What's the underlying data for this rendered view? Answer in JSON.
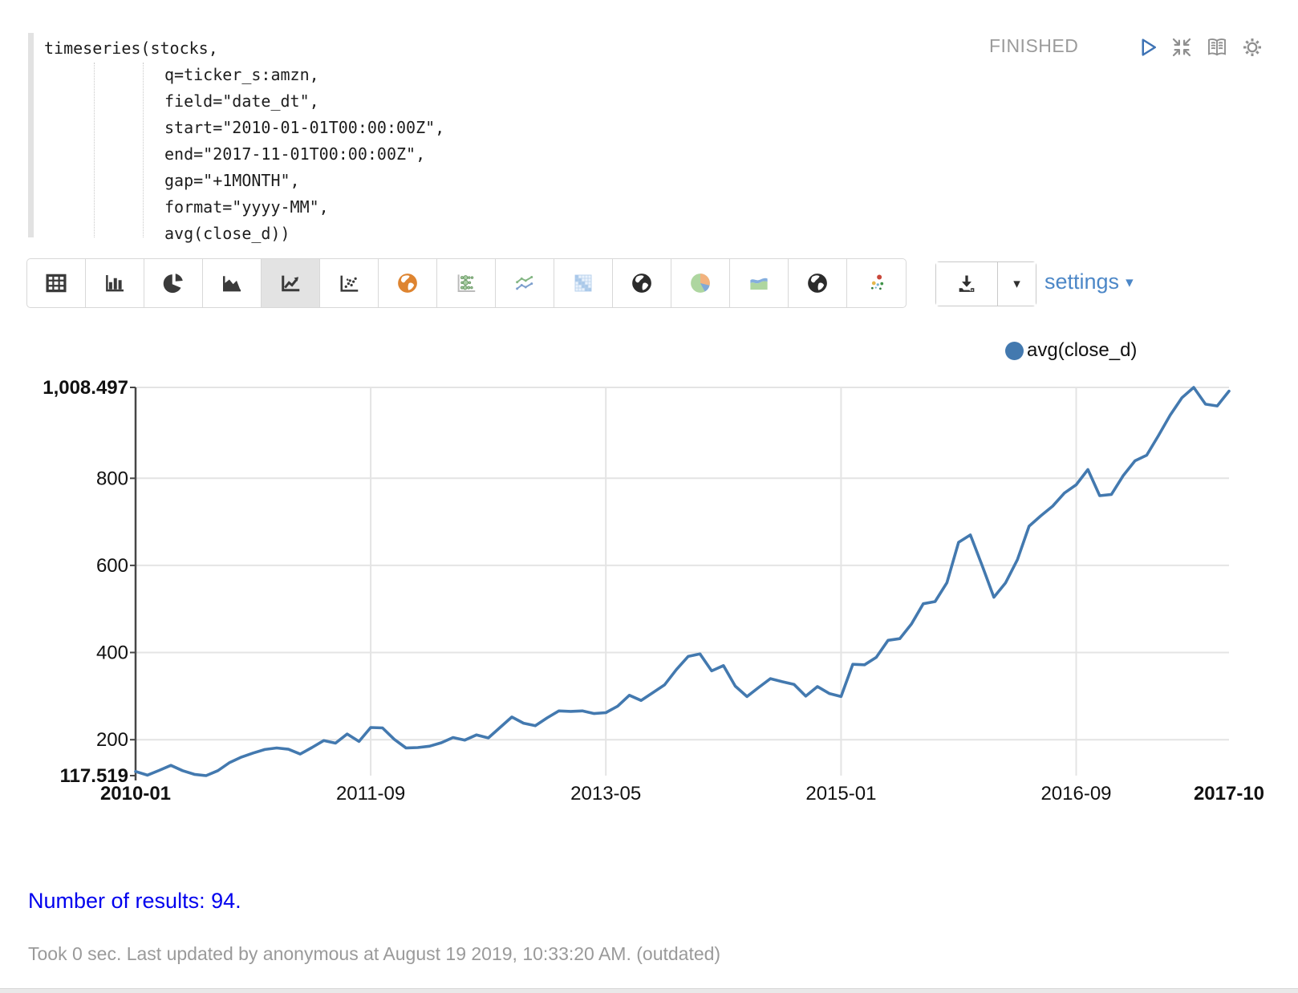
{
  "paragraph": {
    "status": "FINISHED",
    "editor": {
      "lines": [
        "timeseries(stocks,",
        "q=ticker_s:amzn,",
        "field=\"date_dt\",",
        "start=\"2010-01-01T00:00:00Z\",",
        "end=\"2017-11-01T00:00:00Z\",",
        "gap=\"+1MONTH\",",
        "format=\"yyyy-MM\",",
        "avg(close_d))"
      ]
    },
    "toolbar": {
      "buttons": [
        {
          "name": "table",
          "icon": "table-icon",
          "selected": false
        },
        {
          "name": "bar-chart",
          "icon": "bar-chart-icon",
          "selected": false
        },
        {
          "name": "pie-chart",
          "icon": "pie-chart-icon",
          "selected": false
        },
        {
          "name": "area-chart",
          "icon": "area-chart-icon",
          "selected": false
        },
        {
          "name": "line-chart",
          "icon": "line-chart-icon",
          "selected": true
        },
        {
          "name": "scatter-plot",
          "icon": "scatter-plot-icon",
          "selected": false
        },
        {
          "name": "map-orange",
          "icon": "globe-orange-icon",
          "selected": false
        },
        {
          "name": "bubble-matrix",
          "icon": "bubble-matrix-icon",
          "selected": false
        },
        {
          "name": "multi-line",
          "icon": "line-dots-icon",
          "selected": false
        },
        {
          "name": "heatmap",
          "icon": "heatmap-icon",
          "selected": false
        },
        {
          "name": "map-dark",
          "icon": "globe-dark-icon",
          "selected": false
        },
        {
          "name": "pie-color",
          "icon": "pie-color-icon",
          "selected": false
        },
        {
          "name": "area-color",
          "icon": "area-color-icon",
          "selected": false
        },
        {
          "name": "map-dark-2",
          "icon": "globe-dark2-icon",
          "selected": false
        },
        {
          "name": "scatter-color",
          "icon": "scatter-color-icon",
          "selected": false
        }
      ],
      "settings_label": "settings",
      "download_caret": "▾",
      "settings_caret": "▾"
    },
    "legend": {
      "label": "avg(close_d)",
      "color": "#4379af"
    },
    "results_text": "Number of results: 94.",
    "footer_text": "Took 0 sec. Last updated by anonymous at August 19 2019, 10:33:20 AM. (outdated)"
  },
  "chart_data": {
    "type": "line",
    "title": "",
    "xlabel": "",
    "ylabel": "",
    "grid": true,
    "legend_position": "top-right",
    "line_color": "#4379af",
    "ylim": [
      117.519,
      1008.497
    ],
    "y_ticks": [
      200,
      400,
      600,
      800
    ],
    "y_max_label": "1,008.497",
    "y_min_label": "117.519",
    "x_ticks": [
      {
        "index": 0,
        "label": "2010-01",
        "bold": true
      },
      {
        "index": 20,
        "label": "2011-09",
        "bold": false
      },
      {
        "index": 40,
        "label": "2013-05",
        "bold": false
      },
      {
        "index": 60,
        "label": "2015-01",
        "bold": false
      },
      {
        "index": 80,
        "label": "2016-09",
        "bold": false
      },
      {
        "index": 93,
        "label": "2017-10",
        "bold": true
      }
    ],
    "x": [
      "2010-01",
      "2010-02",
      "2010-03",
      "2010-04",
      "2010-05",
      "2010-06",
      "2010-07",
      "2010-08",
      "2010-09",
      "2010-10",
      "2010-11",
      "2010-12",
      "2011-01",
      "2011-02",
      "2011-03",
      "2011-04",
      "2011-05",
      "2011-06",
      "2011-07",
      "2011-08",
      "2011-09",
      "2011-10",
      "2011-11",
      "2011-12",
      "2012-01",
      "2012-02",
      "2012-03",
      "2012-04",
      "2012-05",
      "2012-06",
      "2012-07",
      "2012-08",
      "2012-09",
      "2012-10",
      "2012-11",
      "2012-12",
      "2013-01",
      "2013-02",
      "2013-03",
      "2013-04",
      "2013-05",
      "2013-06",
      "2013-07",
      "2013-08",
      "2013-09",
      "2013-10",
      "2013-11",
      "2013-12",
      "2014-01",
      "2014-02",
      "2014-03",
      "2014-04",
      "2014-05",
      "2014-06",
      "2014-07",
      "2014-08",
      "2014-09",
      "2014-10",
      "2014-11",
      "2014-12",
      "2015-01",
      "2015-02",
      "2015-03",
      "2015-04",
      "2015-05",
      "2015-06",
      "2015-07",
      "2015-08",
      "2015-09",
      "2015-10",
      "2015-11",
      "2015-12",
      "2016-01",
      "2016-02",
      "2016-03",
      "2016-04",
      "2016-05",
      "2016-06",
      "2016-07",
      "2016-08",
      "2016-09",
      "2016-10",
      "2016-11",
      "2016-12",
      "2017-01",
      "2017-02",
      "2017-03",
      "2017-04",
      "2017-05",
      "2017-06",
      "2017-07",
      "2017-08",
      "2017-09",
      "2017-10"
    ],
    "series": [
      {
        "name": "avg(close_d)",
        "values": [
          127,
          118.6,
          129.5,
          141,
          129,
          120.5,
          117.519,
          129,
          147.5,
          160,
          169.5,
          177.5,
          181,
          178,
          167,
          182,
          198,
          192,
          213,
          196,
          228,
          227,
          201,
          181,
          182,
          185,
          193,
          205,
          199,
          211,
          204,
          228,
          252,
          238,
          232,
          250,
          266,
          265,
          266,
          260,
          262,
          277,
          302,
          290,
          308,
          326,
          361,
          391,
          397,
          358,
          370,
          323,
          299,
          320,
          340,
          333,
          327,
          300,
          322,
          306,
          299,
          373,
          372,
          389,
          428,
          432,
          466,
          512,
          517,
          560,
          653,
          670,
          600,
          527,
          560,
          613,
          690,
          714,
          736,
          766,
          785,
          820,
          760,
          763,
          806,
          840,
          853,
          898,
          945,
          985,
          1008.497,
          970,
          966,
          1000
        ]
      }
    ]
  }
}
